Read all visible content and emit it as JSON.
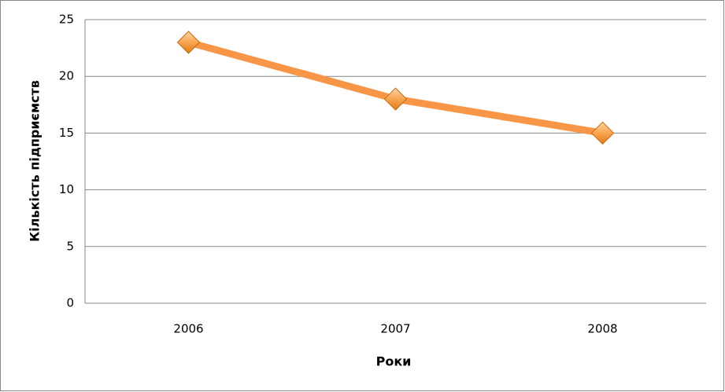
{
  "chart_data": {
    "type": "line",
    "categories": [
      "2006",
      "2007",
      "2008"
    ],
    "values": [
      23,
      18,
      15
    ],
    "color": "#f79646",
    "xlabel": "Роки",
    "ylabel": "Кількість підприємств",
    "ylim": [
      0,
      25
    ],
    "yticks": [
      0,
      5,
      10,
      15,
      20,
      25
    ],
    "grid": true
  }
}
